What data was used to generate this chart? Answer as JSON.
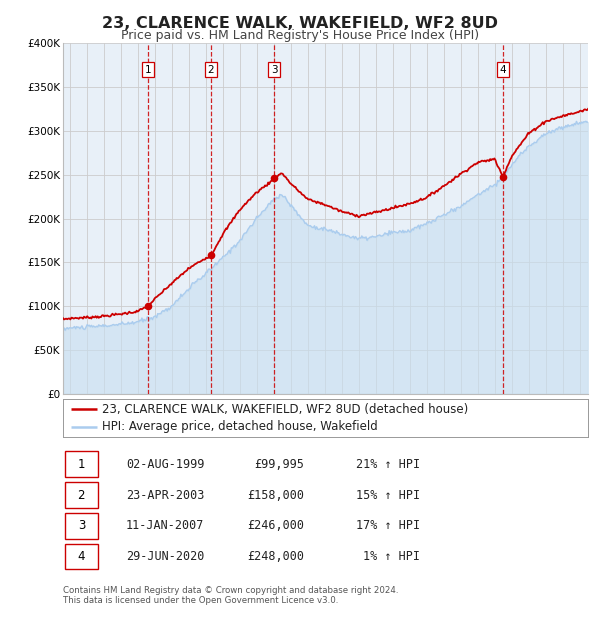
{
  "title": "23, CLARENCE WALK, WAKEFIELD, WF2 8UD",
  "subtitle": "Price paid vs. HM Land Registry's House Price Index (HPI)",
  "xlim": [
    1994.6,
    2025.5
  ],
  "ylim": [
    0,
    400000
  ],
  "yticks": [
    0,
    50000,
    100000,
    150000,
    200000,
    250000,
    300000,
    350000,
    400000
  ],
  "ytick_labels": [
    "£0",
    "£50K",
    "£100K",
    "£150K",
    "£200K",
    "£250K",
    "£300K",
    "£350K",
    "£400K"
  ],
  "xticks": [
    1995,
    1996,
    1997,
    1998,
    1999,
    2000,
    2001,
    2002,
    2003,
    2004,
    2005,
    2006,
    2007,
    2008,
    2009,
    2010,
    2011,
    2012,
    2013,
    2014,
    2015,
    2016,
    2017,
    2018,
    2019,
    2020,
    2021,
    2022,
    2023,
    2024,
    2025
  ],
  "hpi_color": "#aaccee",
  "hpi_fill_color": "#c8dff0",
  "price_color": "#cc0000",
  "vline_color": "#cc0000",
  "grid_color": "#cccccc",
  "background_color": "#e8f0f8",
  "sale_dates": [
    1999.585,
    2003.31,
    2007.036,
    2020.495
  ],
  "sale_prices": [
    99995,
    158000,
    246000,
    248000
  ],
  "sale_labels": [
    "1",
    "2",
    "3",
    "4"
  ],
  "legend_label_price": "23, CLARENCE WALK, WAKEFIELD, WF2 8UD (detached house)",
  "legend_label_hpi": "HPI: Average price, detached house, Wakefield",
  "table_data": [
    [
      "1",
      "02-AUG-1999",
      "£99,995",
      "21% ↑ HPI"
    ],
    [
      "2",
      "23-APR-2003",
      "£158,000",
      "15% ↑ HPI"
    ],
    [
      "3",
      "11-JAN-2007",
      "£246,000",
      "17% ↑ HPI"
    ],
    [
      "4",
      "29-JUN-2020",
      "£248,000",
      "1% ↑ HPI"
    ]
  ],
  "footnote": "Contains HM Land Registry data © Crown copyright and database right 2024.\nThis data is licensed under the Open Government Licence v3.0.",
  "title_fontsize": 11.5,
  "subtitle_fontsize": 9,
  "tick_fontsize": 7.5,
  "legend_fontsize": 8.5,
  "table_fontsize": 8.5
}
